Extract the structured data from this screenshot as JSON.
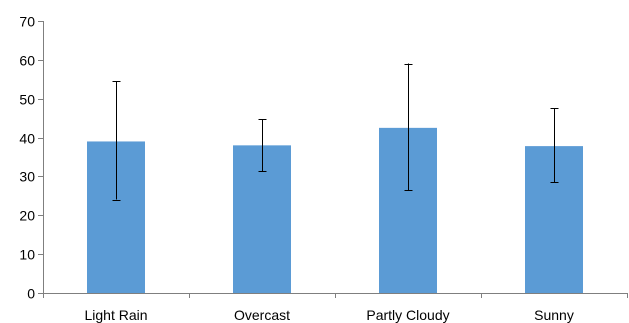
{
  "chart_data": {
    "type": "bar",
    "categories": [
      "Light Rain",
      "Overcast",
      "Partly Cloudy",
      "Sunny"
    ],
    "values": [
      39,
      38,
      42.5,
      37.8
    ],
    "error_low": [
      24,
      31.3,
      26.5,
      28.5
    ],
    "error_high": [
      54.6,
      44.8,
      59,
      47.6
    ],
    "yticks": [
      "0",
      "10",
      "20",
      "30",
      "40",
      "50",
      "60",
      "70"
    ],
    "ylim": [
      0,
      70
    ],
    "title": "",
    "xlabel": "",
    "ylabel": "",
    "grid": false,
    "legend": "none",
    "bar_color": "#5b9bd5",
    "error_bar_color": "#000000",
    "axis_color": "#7f7f7f"
  }
}
